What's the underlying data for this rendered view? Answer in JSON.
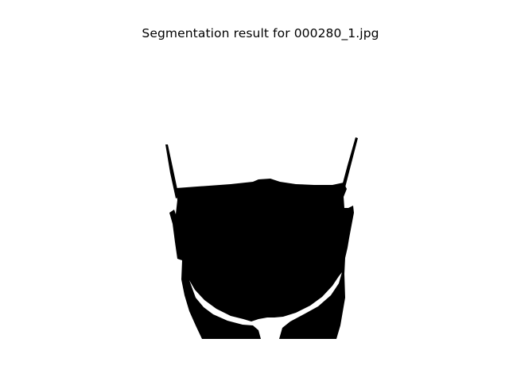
{
  "figure": {
    "title": "Segmentation result for 000280_1.jpg"
  },
  "image": {
    "kind": "binary-segmentation-mask",
    "foreground_color": "#000000",
    "background_color": "#ffffff"
  }
}
